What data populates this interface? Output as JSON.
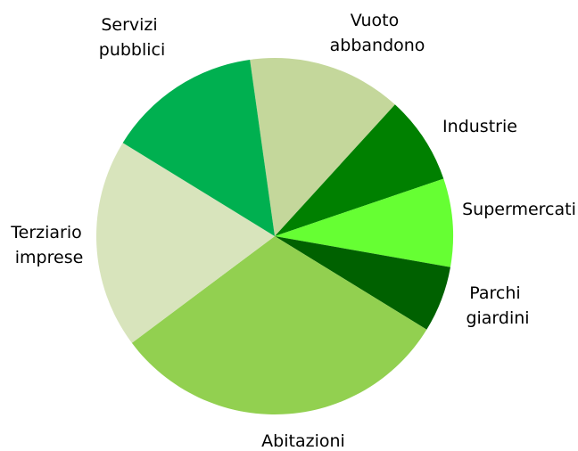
{
  "chart_data": {
    "type": "pie",
    "categories": [
      "Vuoto abbandono",
      "Industrie",
      "Supermercati",
      "Parchi giardini",
      "Abitazioni",
      "Terziario imprese",
      "Servizi pubblici"
    ],
    "values": [
      14,
      8,
      8,
      6,
      31,
      19,
      14
    ],
    "colors": [
      "#c4d79b",
      "#008000",
      "#66ff33",
      "#006100",
      "#92d050",
      "#d8e4bc",
      "#00b050"
    ]
  }
}
